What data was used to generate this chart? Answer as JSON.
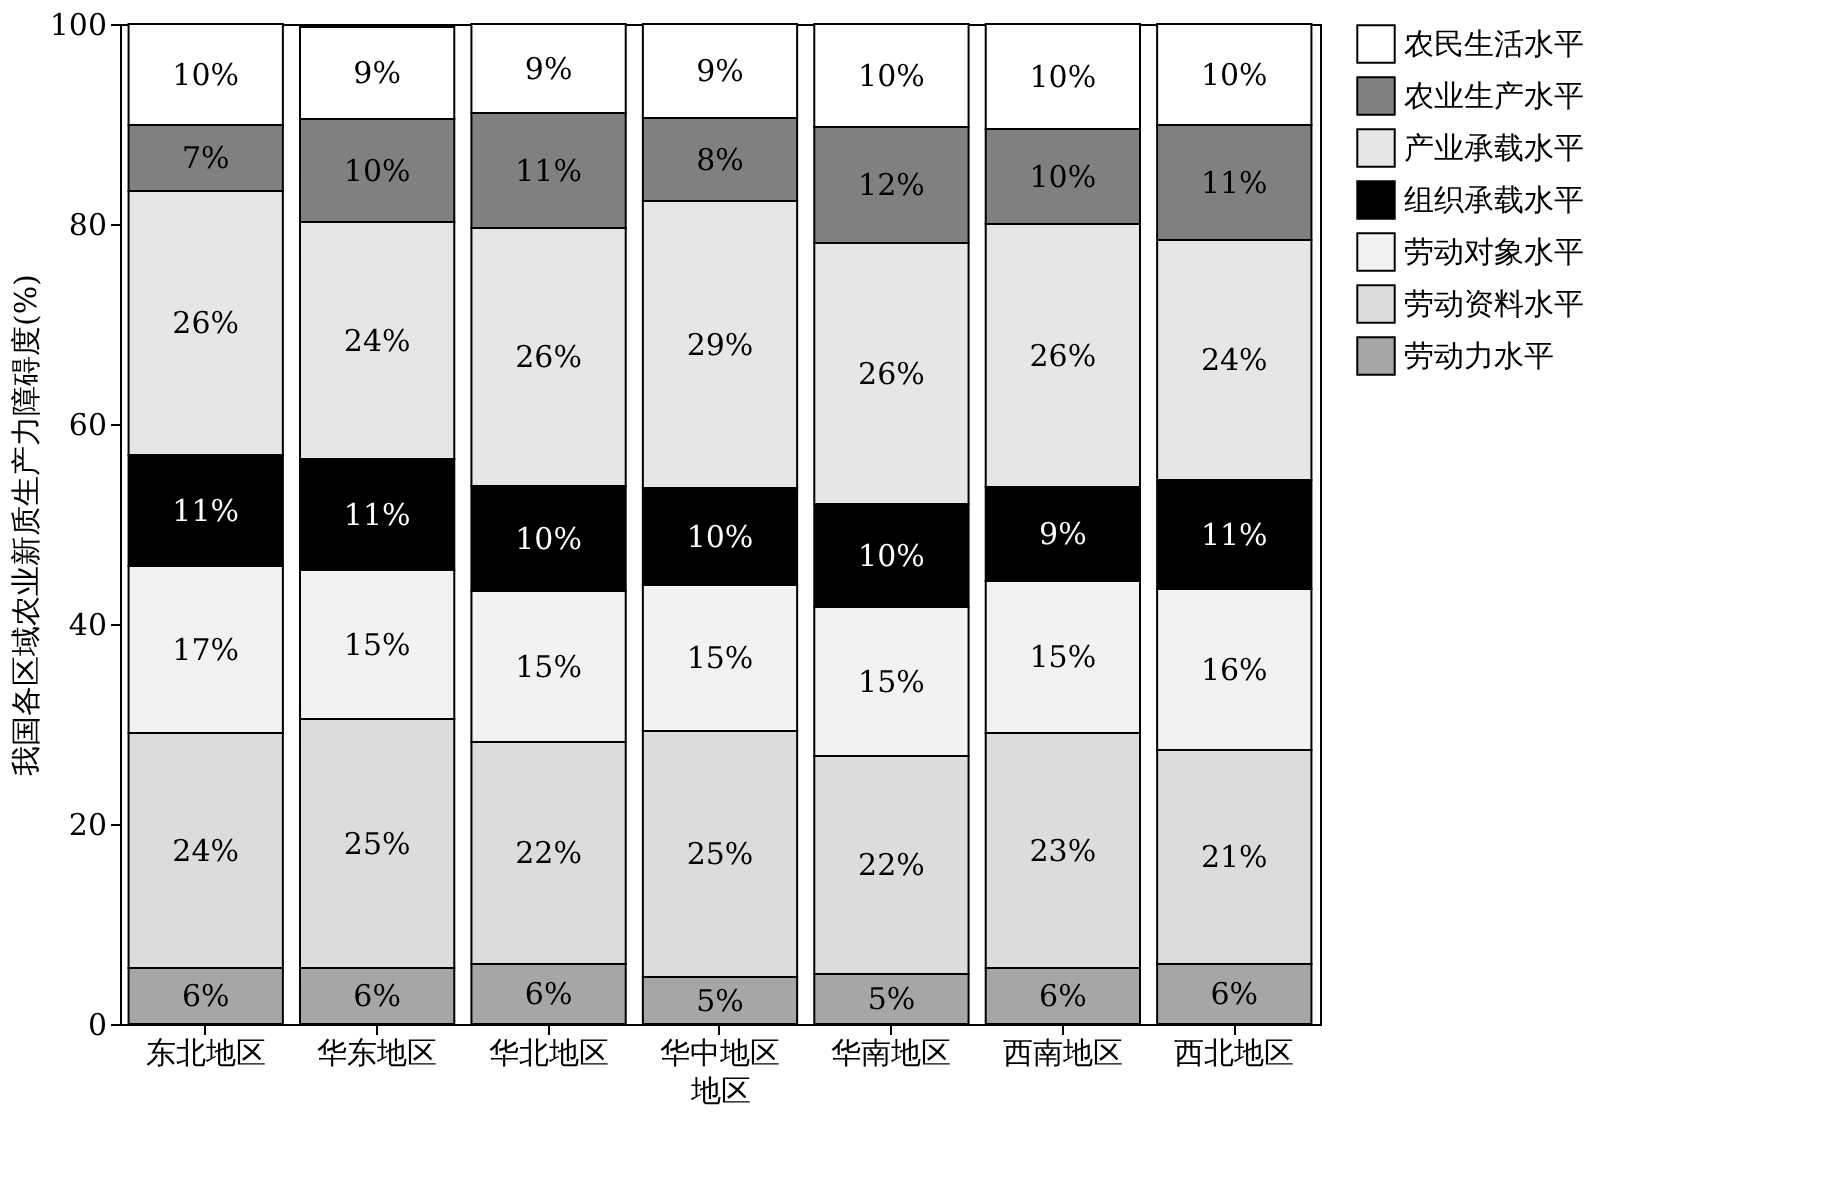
{
  "chart_data": {
    "type": "bar",
    "stacked": true,
    "xlabel": "地区",
    "ylabel": "我国各区域农业新质生产力障碍度(%)",
    "categories": [
      "东北地区",
      "华东地区",
      "华北地区",
      "华中地区",
      "华南地区",
      "西南地区",
      "西北地区"
    ],
    "ylim": [
      0,
      100
    ],
    "yticks": [
      0,
      20,
      40,
      60,
      80,
      100
    ],
    "grid": false,
    "legend": "right",
    "series": [
      {
        "name": "劳动力水平",
        "color": "#a6a6a6",
        "values": [
          5.6,
          5.6,
          6.0,
          4.7,
          5.0,
          5.6,
          6.0
        ],
        "value_labels": [
          "6%",
          "6%",
          "6%",
          "5%",
          "5%",
          "6%",
          "6%"
        ]
      },
      {
        "name": "劳动资料水平",
        "color": "#dcdcdc",
        "values": [
          23.5,
          24.9,
          22.2,
          24.6,
          21.8,
          23.5,
          21.4
        ],
        "value_labels": [
          "24%",
          "25%",
          "22%",
          "25%",
          "22%",
          "23%",
          "21%"
        ]
      },
      {
        "name": "劳动对象水平",
        "color": "#f2f2f2",
        "values": [
          16.7,
          14.9,
          15.1,
          14.6,
          14.9,
          15.2,
          16.1
        ],
        "value_labels": [
          "17%",
          "15%",
          "15%",
          "15%",
          "15%",
          "15%",
          "16%"
        ]
      },
      {
        "name": "组织承载水平",
        "color": "#000000",
        "values": [
          11.1,
          11.1,
          10.5,
          9.7,
          10.3,
          9.4,
          10.9
        ],
        "value_labels": [
          "11%",
          "11%",
          "10%",
          "10%",
          "10%",
          "9%",
          "11%"
        ]
      },
      {
        "name": "产业承载水平",
        "color": "#e6e6e6",
        "values": [
          26.4,
          23.7,
          25.8,
          28.7,
          26.1,
          26.3,
          24.0
        ],
        "value_labels": [
          "26%",
          "24%",
          "26%",
          "29%",
          "26%",
          "26%",
          "24%"
        ]
      },
      {
        "name": "农业生产水平",
        "color": "#808080",
        "values": [
          6.6,
          10.3,
          11.5,
          8.3,
          11.6,
          9.5,
          11.5
        ],
        "value_labels": [
          "7%",
          "10%",
          "11%",
          "8%",
          "12%",
          "10%",
          "11%"
        ]
      },
      {
        "name": "农民生活水平",
        "color": "#ffffff",
        "values": [
          10.1,
          9.2,
          8.9,
          9.4,
          10.3,
          10.5,
          10.1
        ],
        "value_labels": [
          "10%",
          "9%",
          "9%",
          "9%",
          "10%",
          "10%",
          "10%"
        ]
      }
    ]
  }
}
